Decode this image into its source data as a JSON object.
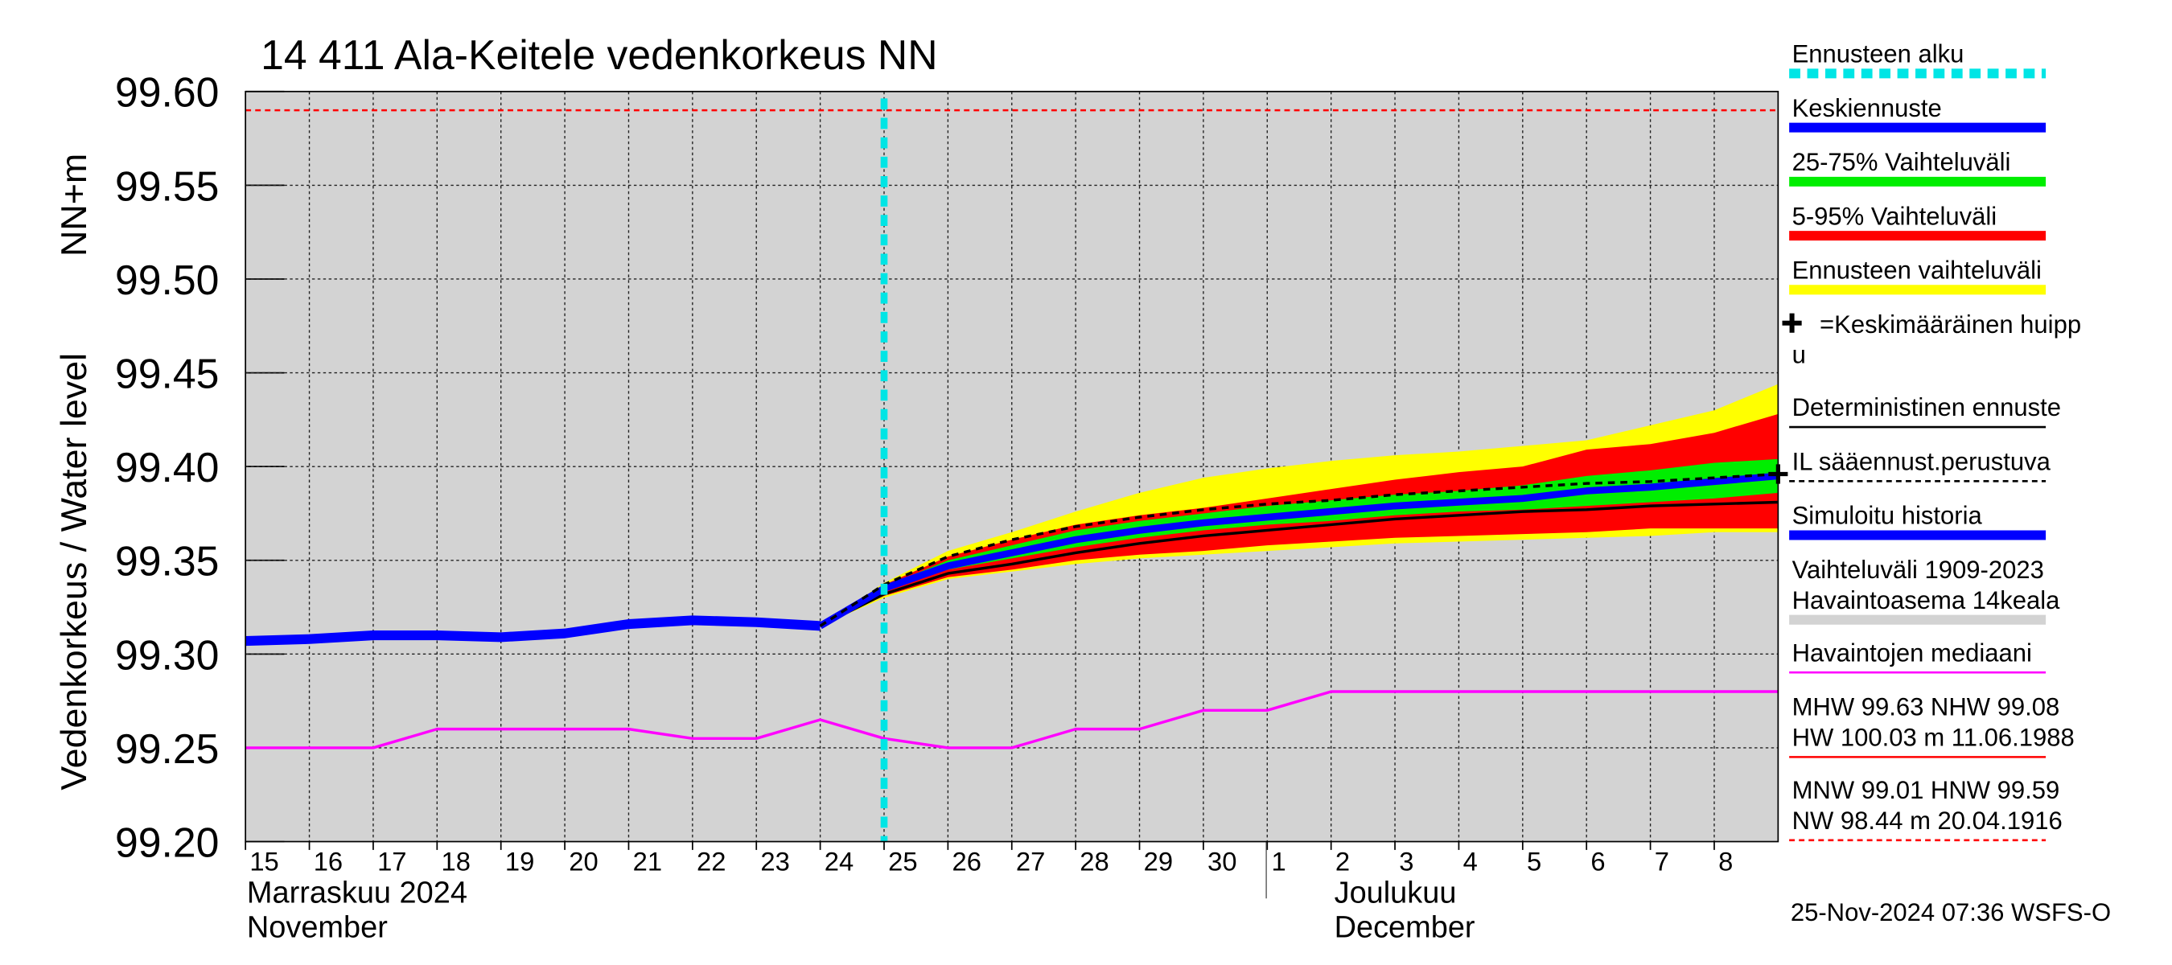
{
  "chart_data": {
    "type": "line",
    "title": "14 411 Ala-Keitele vedenkorkeus NN",
    "y_label": "Vedenkorkeus / Water level",
    "y_unit": "NN+m",
    "month_labels": [
      "Marraskuu 2024",
      "November",
      "Joulukuu",
      "December"
    ],
    "timestamp": "25-Nov-2024 07:36 WSFS-O",
    "categories": [
      "15",
      "16",
      "17",
      "18",
      "19",
      "20",
      "21",
      "22",
      "23",
      "24",
      "25",
      "26",
      "27",
      "28",
      "29",
      "30",
      "1",
      "2",
      "3",
      "4",
      "5",
      "6",
      "7",
      "8",
      null
    ],
    "ylim": [
      99.2,
      99.6
    ],
    "yticks": [
      {
        "value": 99.2,
        "label": "99.20"
      },
      99.25,
      {
        "value": 99.3,
        "label": "99.30"
      },
      99.35,
      {
        "value": 99.4,
        "label": "99.40"
      },
      99.45,
      {
        "value": 99.5,
        "label": "99.50"
      },
      99.55,
      {
        "value": 99.6,
        "label": "99.60"
      }
    ],
    "grid": true,
    "forecast_start": 10,
    "reference_line": 99.59,
    "reference_color": "#ff0000",
    "bands": [
      {
        "name": "Ennusteen vaihteluväli",
        "color": "#ffff00",
        "values": [
          null,
          null,
          null,
          null,
          null,
          null,
          null,
          null,
          null,
          99.315,
          99.338,
          99.355,
          99.365,
          99.376,
          99.386,
          99.394,
          99.399,
          99.403,
          99.406,
          99.408,
          99.411,
          99.414,
          99.422,
          99.43,
          99.444
        ],
        "lower": [
          null,
          null,
          null,
          null,
          null,
          null,
          null,
          null,
          null,
          99.315,
          99.33,
          99.34,
          99.344,
          99.348,
          99.351,
          99.353,
          99.355,
          99.357,
          99.359,
          99.36,
          99.361,
          99.362,
          99.363,
          99.365,
          99.365
        ]
      },
      {
        "name": "5-95% Vaihteluväli",
        "color": "#ff0000",
        "values": [
          null,
          null,
          null,
          null,
          null,
          null,
          null,
          null,
          null,
          99.315,
          99.337,
          99.352,
          99.361,
          99.369,
          99.374,
          99.378,
          99.383,
          99.388,
          99.393,
          99.397,
          99.4,
          99.409,
          99.412,
          99.418,
          99.428
        ],
        "lower": [
          null,
          null,
          null,
          null,
          null,
          null,
          null,
          null,
          null,
          99.315,
          99.331,
          99.341,
          99.345,
          99.35,
          99.353,
          99.355,
          99.358,
          99.36,
          99.362,
          99.363,
          99.364,
          99.365,
          99.367,
          99.367,
          99.367
        ]
      },
      {
        "name": "25-75% Vaihteluväli",
        "color": "#00ee00",
        "values": [
          null,
          null,
          null,
          null,
          null,
          null,
          null,
          null,
          null,
          99.315,
          99.336,
          99.35,
          99.358,
          99.366,
          99.371,
          99.375,
          99.379,
          99.382,
          99.385,
          99.387,
          99.39,
          99.395,
          99.398,
          99.402,
          99.404
        ],
        "lower": [
          null,
          null,
          null,
          null,
          null,
          null,
          null,
          null,
          null,
          99.315,
          99.334,
          99.345,
          99.351,
          99.357,
          99.362,
          99.366,
          99.369,
          99.371,
          99.374,
          99.376,
          99.377,
          99.379,
          99.381,
          99.383,
          99.386
        ]
      }
    ],
    "series": [
      {
        "name": "Havaintojen mediaani",
        "color": "#ff00ff",
        "width": 2,
        "values": [
          99.25,
          99.25,
          99.25,
          99.26,
          99.26,
          99.26,
          99.26,
          99.255,
          99.255,
          99.265,
          99.255,
          99.25,
          99.25,
          99.26,
          99.26,
          99.27,
          99.27,
          99.28,
          99.28,
          99.28,
          99.28,
          99.28,
          99.28,
          99.28,
          99.28
        ]
      },
      {
        "name": "Simuloitu historia",
        "color": "#0000ff",
        "width": 7,
        "values": [
          99.307,
          99.308,
          99.31,
          99.31,
          99.309,
          99.311,
          99.316,
          99.318,
          99.317,
          99.315,
          null,
          null,
          null,
          null,
          null,
          null,
          null,
          null,
          null,
          null,
          null,
          null,
          null,
          null,
          null
        ]
      },
      {
        "name": "Deterministinen ennuste",
        "color": "#000000",
        "width": 2,
        "values": [
          null,
          null,
          null,
          null,
          null,
          null,
          null,
          null,
          null,
          99.315,
          99.332,
          99.343,
          99.348,
          99.354,
          99.359,
          99.363,
          99.366,
          99.369,
          99.372,
          99.374,
          99.376,
          99.377,
          99.379,
          99.38,
          99.381
        ]
      },
      {
        "name": "Keskiennuste",
        "color": "#0000ff",
        "width": 5,
        "values": [
          null,
          null,
          null,
          null,
          null,
          null,
          null,
          null,
          null,
          99.315,
          99.335,
          99.347,
          99.354,
          99.361,
          99.366,
          99.37,
          99.373,
          99.376,
          99.379,
          99.381,
          99.383,
          99.387,
          99.389,
          99.392,
          99.395
        ]
      },
      {
        "name": "IL sääennust.perustuva",
        "color": "#000000",
        "width": 2,
        "dashed": true,
        "values": [
          null,
          null,
          null,
          null,
          null,
          null,
          null,
          null,
          null,
          99.315,
          99.337,
          99.352,
          99.361,
          99.368,
          99.373,
          99.377,
          99.38,
          99.382,
          99.385,
          99.387,
          99.389,
          99.391,
          99.392,
          99.394,
          99.396
        ]
      }
    ],
    "peak": {
      "index": 24,
      "value": 99.396
    },
    "legend": [
      {
        "label": "Ennusteen alku",
        "color": "#00e5e5",
        "dashed": true
      },
      {
        "label": "Keskiennuste",
        "color": "#0000ff"
      },
      {
        "label": "25-75% Vaihteluväli",
        "color": "#00ee00"
      },
      {
        "label": "5-95% Vaihteluväli",
        "color": "#ff0000"
      },
      {
        "label": "Ennusteen vaihteluväli",
        "color": "#ffff00"
      },
      {
        "label": "=Keskimääräinen huipp",
        "label2": "u",
        "color": null
      },
      {
        "label": "Deterministinen ennuste",
        "color": "#000000",
        "thin": true
      },
      {
        "label": "IL sääennust.perustuva",
        "color": "#000000",
        "thin": true,
        "dashed": true
      },
      {
        "label": "Simuloitu historia",
        "color": "#0000ff"
      },
      {
        "label": "Vaihteluväli 1909-2023",
        "label2": " Havaintoasema 14keala",
        "color": "#d3d3d3"
      },
      {
        "label": "Havaintojen mediaani",
        "color": "#ff00ff",
        "thin": true
      },
      {
        "label": "MHW  99.63 NHW  99.08",
        "label2": "HW 100.03 m 11.06.1988",
        "color": "#ff0000",
        "thin": true
      },
      {
        "label": "MNW  99.01 HNW  99.59",
        "label2": "NW  98.44 m 20.04.1916",
        "color": "#ff0000",
        "thin": true,
        "dashed": true
      }
    ]
  }
}
